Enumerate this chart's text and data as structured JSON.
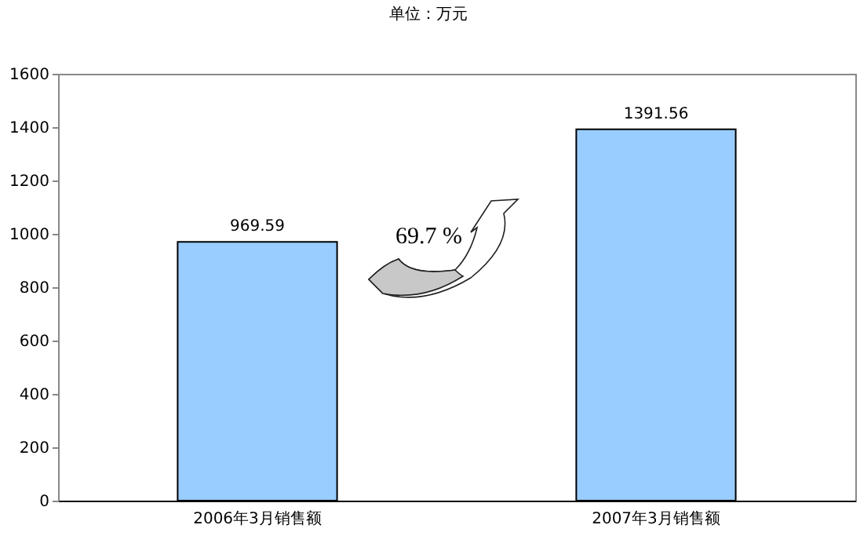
{
  "chart_data": {
    "type": "bar",
    "title": "单位：万元",
    "categories": [
      "2006年3月销售额",
      "2007年3月销售额"
    ],
    "series": [
      {
        "color": "#99ccff",
        "values": [
          969.59,
          1391.56
        ]
      }
    ],
    "ylim": [
      0,
      1600
    ],
    "yticks": [
      0,
      200,
      400,
      600,
      800,
      1000,
      1200,
      1400,
      1600
    ],
    "data_labels": true,
    "grid": false,
    "annotations": [
      "69.7 %"
    ]
  }
}
